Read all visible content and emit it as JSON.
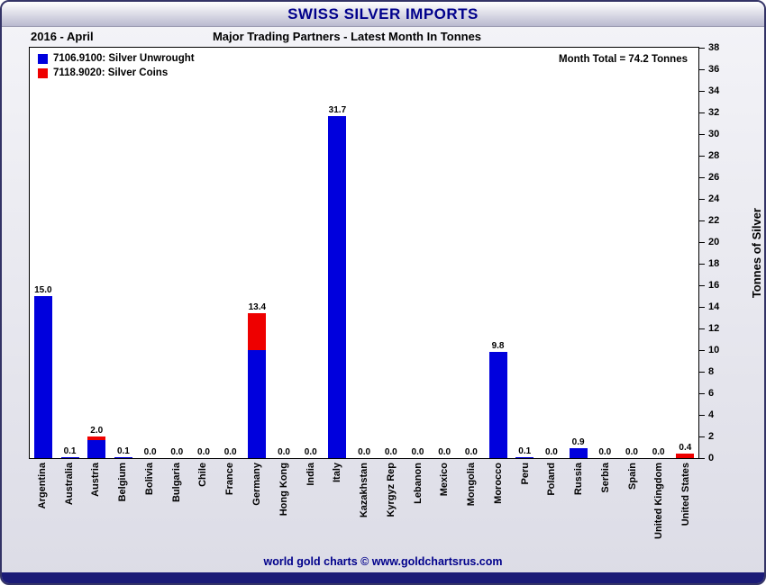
{
  "title": "SWISS SILVER IMPORTS",
  "subheader": {
    "period": "2016 - April",
    "heading": "Major Trading Partners - Latest Month In Tonnes"
  },
  "annotations": {
    "month_total": "Month Total = 74.2 Tonnes"
  },
  "legend": {
    "items": [
      {
        "label": "7106.9100: Silver Unwrought",
        "color": "#0000dd"
      },
      {
        "label": "7118.9020: Silver Coins",
        "color": "#ee0000"
      }
    ]
  },
  "footer": {
    "credit": "world gold charts © www.goldchartsrus.com"
  },
  "chart_data": {
    "type": "bar",
    "stacked": true,
    "title": "SWISS SILVER IMPORTS",
    "subtitle": "Major Trading Partners - Latest Month In Tonnes, 2016 - April",
    "xlabel": "",
    "ylabel": "Tonnes of Silver",
    "ylim": [
      0,
      38
    ],
    "ytick_step": 2,
    "grid": false,
    "legend_position": "top-left",
    "categories": [
      "Argentina",
      "Australia",
      "Austria",
      "Belgium",
      "Bolivia",
      "Bulgaria",
      "Chile",
      "France",
      "Germany",
      "Hong Kong",
      "India",
      "Italy",
      "Kazakhstan",
      "Kyrgyz Rep",
      "Lebanon",
      "Mexico",
      "Mongolia",
      "Morocco",
      "Peru",
      "Poland",
      "Russia",
      "Serbia",
      "Spain",
      "United Kingdom",
      "United States"
    ],
    "series": [
      {
        "name": "7106.9100: Silver Unwrought",
        "color": "#0000dd",
        "values": [
          15.0,
          0.1,
          1.7,
          0.1,
          0,
          0,
          0,
          0,
          10.0,
          0,
          0,
          31.7,
          0,
          0,
          0,
          0,
          0,
          9.8,
          0.1,
          0,
          0.9,
          0,
          0,
          0,
          0
        ]
      },
      {
        "name": "7118.9020: Silver Coins",
        "color": "#ee0000",
        "values": [
          0,
          0,
          0.3,
          0,
          0,
          0,
          0,
          0,
          3.4,
          0,
          0,
          0,
          0,
          0,
          0,
          0,
          0,
          0,
          0,
          0,
          0,
          0,
          0,
          0,
          0.4
        ]
      }
    ],
    "totals_labels": [
      "15.0",
      "0.1",
      "2.0",
      "0.1",
      "0.0",
      "0.0",
      "0.0",
      "0.0",
      "13.4",
      "0.0",
      "0.0",
      "31.7",
      "0.0",
      "0.0",
      "0.0",
      "0.0",
      "0.0",
      "9.8",
      "0.1",
      "0.0",
      "0.9",
      "0.0",
      "0.0",
      "0.0",
      "0.4"
    ]
  }
}
